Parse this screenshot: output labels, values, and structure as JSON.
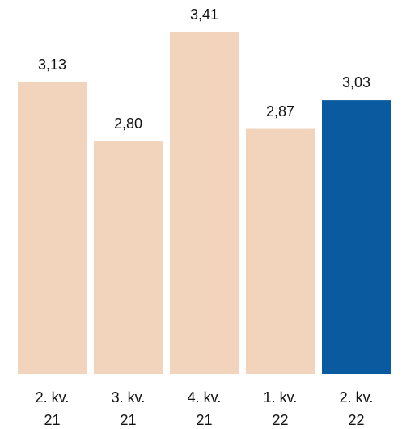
{
  "chart_data": {
    "type": "bar",
    "categories": [
      "2. kv. 21",
      "3. kv. 21",
      "4. kv. 21",
      "1. kv. 22",
      "2. kv. 22"
    ],
    "values": [
      3.13,
      2.8,
      3.41,
      2.87,
      3.03
    ],
    "value_labels": [
      "3,13",
      "2,80",
      "3,41",
      "2,87",
      "3,03"
    ],
    "colors": [
      "#f2d4bd",
      "#f2d4bd",
      "#f2d4bd",
      "#f2d4bd",
      "#0a5aa0"
    ],
    "ylim": [
      1.5,
      3.5
    ]
  }
}
